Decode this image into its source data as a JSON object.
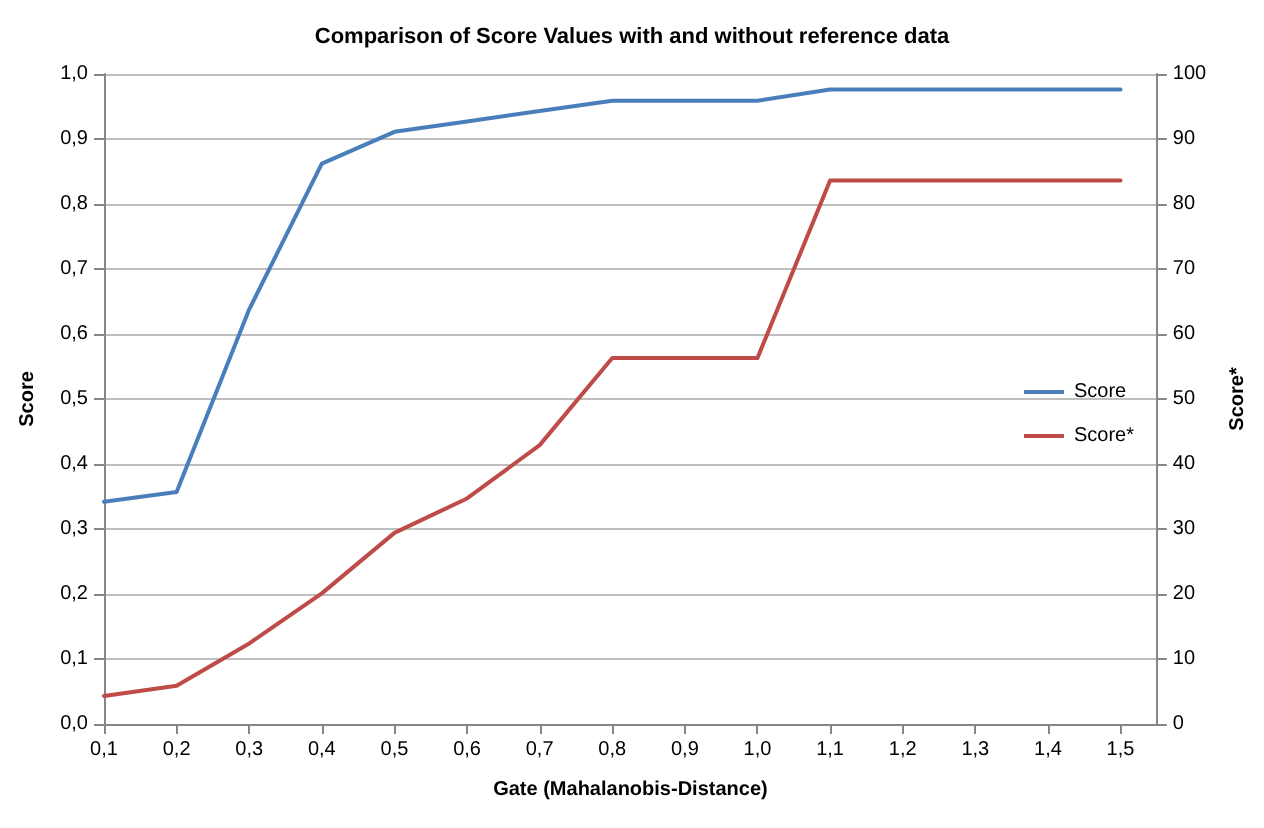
{
  "chart_data": {
    "type": "line",
    "title": "Comparison of Score Values with and without reference data",
    "xlabel": "Gate (Mahalanobis-Distance)",
    "ylabel": "Score",
    "y2label": "Score*",
    "x": [
      0.1,
      0.2,
      0.3,
      0.4,
      0.5,
      0.6,
      0.7,
      0.8,
      0.9,
      1.0,
      1.1,
      1.2,
      1.3,
      1.4,
      1.5
    ],
    "series": [
      {
        "name": "Score",
        "color": "#4a7ebb",
        "values": [
          0.342,
          0.357,
          0.638,
          0.862,
          0.911,
          0.927,
          0.943,
          0.959,
          0.959,
          0.959,
          0.976,
          0.976,
          0.976,
          0.976,
          0.976
        ]
      },
      {
        "name": "Score*",
        "color": "#be4b48",
        "axis": "y2",
        "values": [
          4.3,
          5.9,
          12.4,
          20.1,
          29.4,
          34.7,
          42.9,
          56.3,
          56.3,
          56.3,
          83.6,
          83.6,
          83.6,
          83.6,
          83.6
        ]
      }
    ],
    "xlim": [
      0.1,
      1.55
    ],
    "xticks": [
      {
        "value": 0.1,
        "label": "0,1"
      },
      {
        "value": 0.2,
        "label": "0,2"
      },
      {
        "value": 0.3,
        "label": "0,3"
      },
      {
        "value": 0.4,
        "label": "0,4"
      },
      {
        "value": 0.5,
        "label": "0,5"
      },
      {
        "value": 0.6,
        "label": "0,6"
      },
      {
        "value": 0.7,
        "label": "0,7"
      },
      {
        "value": 0.8,
        "label": "0,8"
      },
      {
        "value": 0.9,
        "label": "0,9"
      },
      {
        "value": 1.0,
        "label": "1,0"
      },
      {
        "value": 1.1,
        "label": "1,1"
      },
      {
        "value": 1.2,
        "label": "1,2"
      },
      {
        "value": 1.3,
        "label": "1,3"
      },
      {
        "value": 1.4,
        "label": "1,4"
      },
      {
        "value": 1.5,
        "label": "1,5"
      }
    ],
    "ylim": [
      0,
      1
    ],
    "yticks": [
      {
        "value": 0,
        "label": "0,0"
      },
      {
        "value": 0.1,
        "label": "0,1"
      },
      {
        "value": 0.2,
        "label": "0,2"
      },
      {
        "value": 0.3,
        "label": "0,3"
      },
      {
        "value": 0.4,
        "label": "0,4"
      },
      {
        "value": 0.5,
        "label": "0,5"
      },
      {
        "value": 0.6,
        "label": "0,6"
      },
      {
        "value": 0.7,
        "label": "0,7"
      },
      {
        "value": 0.8,
        "label": "0,8"
      },
      {
        "value": 0.9,
        "label": "0,9"
      },
      {
        "value": 1,
        "label": "1,0"
      }
    ],
    "y2lim": [
      0,
      100
    ],
    "y2ticks": [
      0,
      10,
      20,
      30,
      40,
      50,
      60,
      70,
      80,
      90,
      100
    ],
    "grid": "y",
    "legend": "right",
    "marker": "none",
    "line_style": "solid"
  }
}
